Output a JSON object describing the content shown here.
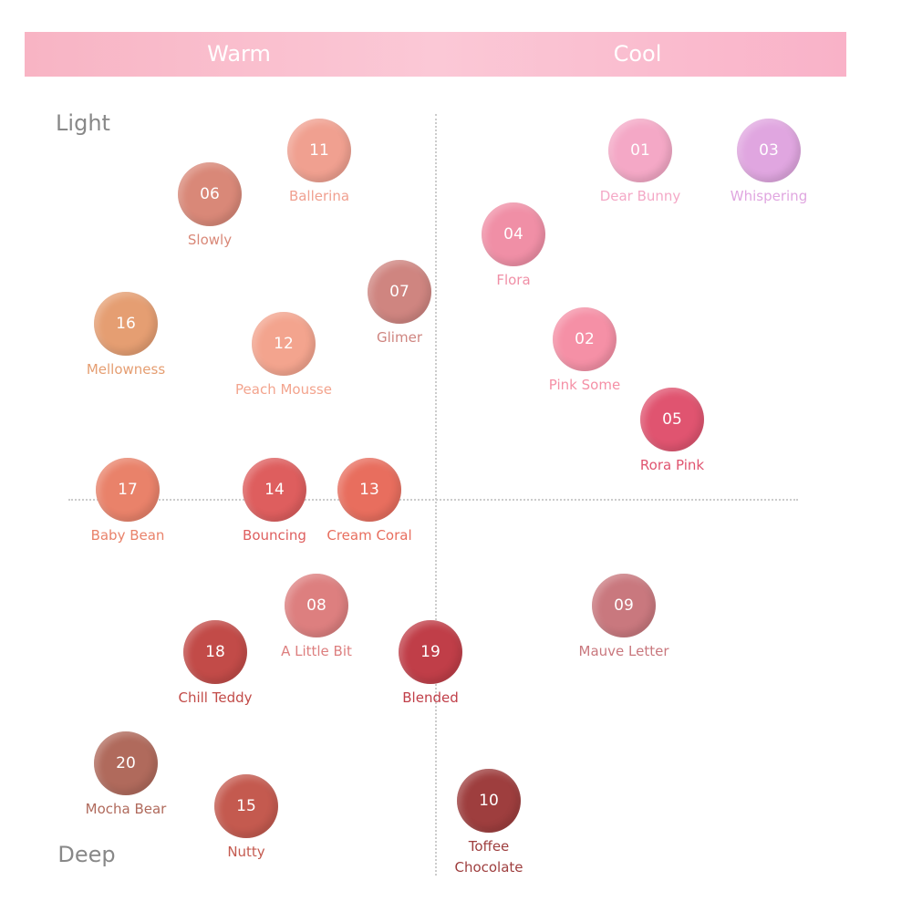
{
  "header": {
    "left": "Warm",
    "right": "Cool"
  },
  "axis": {
    "top": "Light",
    "bottom": "Deep"
  },
  "swatches": [
    {
      "code": "11",
      "name": "Ballerina",
      "color": "#f0a090"
    },
    {
      "code": "06",
      "name": "Slowly",
      "color": "#d98878"
    },
    {
      "code": "07",
      "name": "Glimer",
      "color": "#cf8580"
    },
    {
      "code": "16",
      "name": "Mellowness",
      "color": "#e59e72"
    },
    {
      "code": "12",
      "name": "Peach Mousse",
      "color": "#f3a48e"
    },
    {
      "code": "17",
      "name": "Baby Bean",
      "color": "#e9826a"
    },
    {
      "code": "14",
      "name": "Bouncing",
      "color": "#de5e5e"
    },
    {
      "code": "13",
      "name": "Cream Coral",
      "color": "#e86e5e"
    },
    {
      "code": "08",
      "name": "A Little Bit",
      "color": "#dd7f7f"
    },
    {
      "code": "18",
      "name": "Chill Teddy",
      "color": "#c24b48"
    },
    {
      "code": "19",
      "name": "Blended",
      "color": "#c03e48"
    },
    {
      "code": "20",
      "name": "Mocha Bear",
      "color": "#b06a5c"
    },
    {
      "code": "15",
      "name": "Nutty",
      "color": "#c45a4f"
    },
    {
      "code": "10",
      "name": "Toffee Chocolate",
      "color": "#9e3e3e"
    },
    {
      "code": "01",
      "name": "Dear Bunny",
      "color": "#f4a8c6"
    },
    {
      "code": "03",
      "name": "Whispering",
      "color": "#e0a6e0"
    },
    {
      "code": "04",
      "name": "Flora",
      "color": "#f08fa6"
    },
    {
      "code": "02",
      "name": "Pink Some",
      "color": "#f590a6"
    },
    {
      "code": "05",
      "name": "Rora Pink",
      "color": "#e05470"
    },
    {
      "code": "09",
      "name": "Mauve Letter",
      "color": "#c9787e"
    }
  ]
}
